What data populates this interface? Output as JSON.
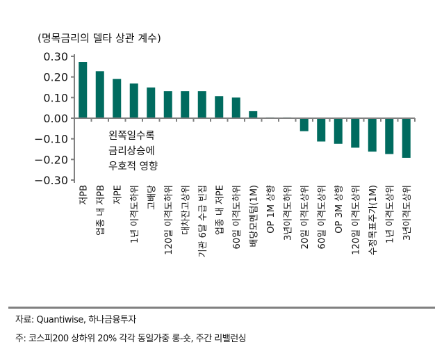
{
  "chart_data": {
    "type": "bar",
    "title": "(명목금리의 델타 상관 계수)",
    "xlabel": "",
    "ylabel": "",
    "ylim": [
      -0.3,
      0.3
    ],
    "yticks": [
      "0.30",
      "0.20",
      "0.10",
      "0.00",
      "-0.10",
      "-0.20",
      "-0.30"
    ],
    "grid": false,
    "bar_color": "#006B5F",
    "annotation": [
      "왼쪽일수록",
      "금리상승에",
      "우호적 영향"
    ],
    "categories": [
      "저PB",
      "업종 내 저PB",
      "저PE",
      "1년 이격도하위",
      "고배당",
      "120일 이격도하위",
      "대차잔고상위",
      "기관 6달 수급 빈집",
      "업종 내 저PE",
      "60일 이격도하위",
      "배당모멘텀(1M)",
      "OP 1M 상향",
      "3년이격도하위",
      "20일 이격도상위",
      "60일 이격도상위",
      "OP 3M 상향",
      "120일 이격도상위",
      "수정목표주가(1M)",
      "1년 이격도상위",
      "3년이격도상위"
    ],
    "values": [
      0.273,
      0.228,
      0.19,
      0.168,
      0.149,
      0.131,
      0.131,
      0.131,
      0.107,
      0.1,
      0.034,
      0.005,
      0.005,
      -0.063,
      -0.113,
      -0.124,
      -0.143,
      -0.162,
      -0.174,
      -0.192
    ]
  },
  "footer": {
    "source": "자료: Quantiwise, 하나금융투자",
    "note": "주: 코스피200 상하위 20% 각각 동일가중 롱-숏, 주간 리밸런싱"
  }
}
